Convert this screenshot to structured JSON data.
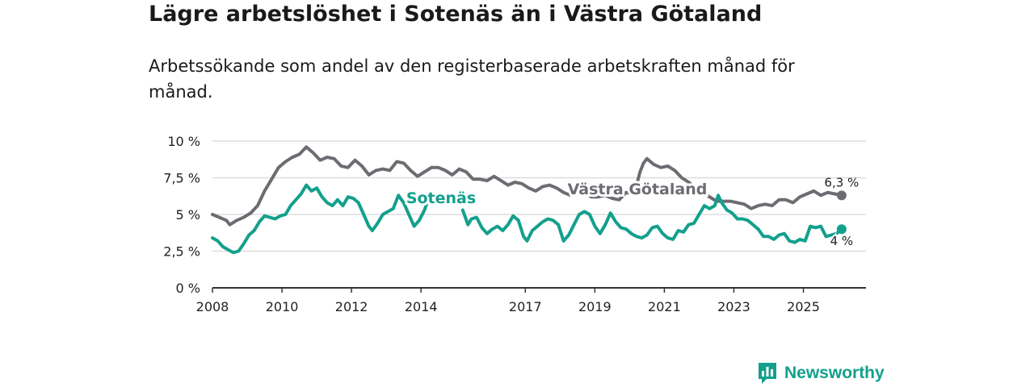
{
  "title": "Lägre arbetslöshet i Sotenäs än i Västra Götaland",
  "subtitle": "Arbetssökande som andel av den registerbaserade arbetskraften månad för månad.",
  "brand": {
    "name": "Newsworthy",
    "icon": "bar-chart-speech-icon"
  },
  "colors": {
    "sotenas": "#13a08c",
    "vastra": "#6d6c72",
    "grid": "#dddddd",
    "axis": "#333333"
  },
  "chart_data": {
    "type": "line",
    "title": "Lägre arbetslöshet i Sotenäs än i Västra Götaland",
    "xlabel": "",
    "ylabel": "",
    "xlim": [
      2008.0,
      2026.8
    ],
    "ylim": [
      0,
      10
    ],
    "y_ticks": [
      {
        "value": 0,
        "label": "0 %"
      },
      {
        "value": 2.5,
        "label": "2,5 %"
      },
      {
        "value": 5,
        "label": "5 %"
      },
      {
        "value": 7.5,
        "label": "7,5 %"
      },
      {
        "value": 10,
        "label": "10 %"
      }
    ],
    "x_ticks": [
      {
        "value": 2008,
        "label": "2008"
      },
      {
        "value": 2010,
        "label": "2010"
      },
      {
        "value": 2012,
        "label": "2012"
      },
      {
        "value": 2014,
        "label": "2014"
      },
      {
        "value": 2017,
        "label": "2017"
      },
      {
        "value": 2019,
        "label": "2019"
      },
      {
        "value": 2021,
        "label": "2021"
      },
      {
        "value": 2023,
        "label": "2023"
      },
      {
        "value": 2025,
        "label": "2025"
      }
    ],
    "grid": true,
    "series": [
      {
        "name": "Västra Götaland",
        "color": "#6d6c72",
        "end_label": "6,3 %",
        "points": [
          [
            2008.0,
            5.0
          ],
          [
            2008.2,
            4.8
          ],
          [
            2008.4,
            4.6
          ],
          [
            2008.5,
            4.3
          ],
          [
            2008.7,
            4.6
          ],
          [
            2008.9,
            4.8
          ],
          [
            2009.1,
            5.1
          ],
          [
            2009.3,
            5.6
          ],
          [
            2009.5,
            6.6
          ],
          [
            2009.7,
            7.4
          ],
          [
            2009.9,
            8.2
          ],
          [
            2010.1,
            8.6
          ],
          [
            2010.3,
            8.9
          ],
          [
            2010.5,
            9.1
          ],
          [
            2010.7,
            9.6
          ],
          [
            2010.9,
            9.2
          ],
          [
            2011.1,
            8.7
          ],
          [
            2011.3,
            8.9
          ],
          [
            2011.5,
            8.8
          ],
          [
            2011.7,
            8.3
          ],
          [
            2011.9,
            8.2
          ],
          [
            2012.1,
            8.7
          ],
          [
            2012.3,
            8.3
          ],
          [
            2012.5,
            7.7
          ],
          [
            2012.7,
            8.0
          ],
          [
            2012.9,
            8.1
          ],
          [
            2013.1,
            8.0
          ],
          [
            2013.3,
            8.6
          ],
          [
            2013.5,
            8.5
          ],
          [
            2013.7,
            8.0
          ],
          [
            2013.9,
            7.6
          ],
          [
            2014.1,
            7.9
          ],
          [
            2014.3,
            8.2
          ],
          [
            2014.5,
            8.2
          ],
          [
            2014.7,
            8.0
          ],
          [
            2014.9,
            7.7
          ],
          [
            2015.1,
            8.1
          ],
          [
            2015.3,
            7.9
          ],
          [
            2015.5,
            7.4
          ],
          [
            2015.7,
            7.4
          ],
          [
            2015.9,
            7.3
          ],
          [
            2016.1,
            7.6
          ],
          [
            2016.3,
            7.3
          ],
          [
            2016.5,
            7.0
          ],
          [
            2016.7,
            7.2
          ],
          [
            2016.9,
            7.1
          ],
          [
            2017.1,
            6.8
          ],
          [
            2017.3,
            6.6
          ],
          [
            2017.5,
            6.9
          ],
          [
            2017.7,
            7.0
          ],
          [
            2017.9,
            6.8
          ],
          [
            2018.1,
            6.5
          ],
          [
            2018.3,
            6.3
          ],
          [
            2018.5,
            6.6
          ],
          [
            2018.7,
            6.5
          ],
          [
            2018.9,
            6.2
          ],
          [
            2019.1,
            6.2
          ],
          [
            2019.3,
            6.3
          ],
          [
            2019.5,
            6.1
          ],
          [
            2019.7,
            6.0
          ],
          [
            2019.9,
            6.5
          ],
          [
            2020.1,
            6.4
          ],
          [
            2020.2,
            7.0
          ],
          [
            2020.3,
            7.9
          ],
          [
            2020.4,
            8.5
          ],
          [
            2020.5,
            8.8
          ],
          [
            2020.7,
            8.4
          ],
          [
            2020.9,
            8.2
          ],
          [
            2021.1,
            8.3
          ],
          [
            2021.3,
            8.0
          ],
          [
            2021.5,
            7.5
          ],
          [
            2021.7,
            7.2
          ],
          [
            2021.9,
            6.8
          ],
          [
            2022.1,
            6.5
          ],
          [
            2022.3,
            6.2
          ],
          [
            2022.5,
            5.9
          ],
          [
            2022.7,
            5.9
          ],
          [
            2022.9,
            5.9
          ],
          [
            2023.1,
            5.8
          ],
          [
            2023.3,
            5.7
          ],
          [
            2023.5,
            5.4
          ],
          [
            2023.7,
            5.6
          ],
          [
            2023.9,
            5.7
          ],
          [
            2024.1,
            5.6
          ],
          [
            2024.3,
            6.0
          ],
          [
            2024.5,
            6.0
          ],
          [
            2024.7,
            5.8
          ],
          [
            2024.9,
            6.2
          ],
          [
            2025.1,
            6.4
          ],
          [
            2025.3,
            6.6
          ],
          [
            2025.5,
            6.3
          ],
          [
            2025.7,
            6.5
          ],
          [
            2025.9,
            6.4
          ],
          [
            2026.1,
            6.3
          ]
        ]
      },
      {
        "name": "Sotenäs",
        "color": "#13a08c",
        "end_label": "4 %",
        "points": [
          [
            2008.0,
            3.4
          ],
          [
            2008.15,
            3.2
          ],
          [
            2008.3,
            2.8
          ],
          [
            2008.45,
            2.6
          ],
          [
            2008.6,
            2.4
          ],
          [
            2008.75,
            2.5
          ],
          [
            2008.9,
            3.0
          ],
          [
            2009.05,
            3.6
          ],
          [
            2009.2,
            3.9
          ],
          [
            2009.35,
            4.5
          ],
          [
            2009.5,
            4.9
          ],
          [
            2009.65,
            4.8
          ],
          [
            2009.8,
            4.7
          ],
          [
            2009.95,
            4.9
          ],
          [
            2010.1,
            5.0
          ],
          [
            2010.25,
            5.6
          ],
          [
            2010.4,
            6.0
          ],
          [
            2010.55,
            6.4
          ],
          [
            2010.7,
            7.0
          ],
          [
            2010.85,
            6.6
          ],
          [
            2011.0,
            6.8
          ],
          [
            2011.15,
            6.2
          ],
          [
            2011.3,
            5.8
          ],
          [
            2011.45,
            5.6
          ],
          [
            2011.6,
            6.0
          ],
          [
            2011.75,
            5.6
          ],
          [
            2011.9,
            6.2
          ],
          [
            2012.05,
            6.1
          ],
          [
            2012.2,
            5.8
          ],
          [
            2012.35,
            5.0
          ],
          [
            2012.5,
            4.2
          ],
          [
            2012.6,
            3.9
          ],
          [
            2012.75,
            4.4
          ],
          [
            2012.9,
            5.0
          ],
          [
            2013.05,
            5.2
          ],
          [
            2013.2,
            5.4
          ],
          [
            2013.35,
            6.3
          ],
          [
            2013.5,
            5.8
          ],
          [
            2013.65,
            5.0
          ],
          [
            2013.8,
            4.2
          ],
          [
            2013.95,
            4.6
          ],
          [
            2014.1,
            5.3
          ],
          [
            2014.25,
            6.3
          ]
        ],
        "points_b": [
          [
            2015.2,
            5.3
          ],
          [
            2015.35,
            4.3
          ],
          [
            2015.45,
            4.7
          ],
          [
            2015.6,
            4.8
          ],
          [
            2015.75,
            4.1
          ],
          [
            2015.9,
            3.7
          ],
          [
            2016.05,
            4.0
          ],
          [
            2016.2,
            4.2
          ],
          [
            2016.35,
            3.9
          ],
          [
            2016.5,
            4.3
          ],
          [
            2016.65,
            4.9
          ],
          [
            2016.8,
            4.6
          ],
          [
            2016.95,
            3.5
          ],
          [
            2017.05,
            3.2
          ],
          [
            2017.2,
            3.9
          ],
          [
            2017.35,
            4.2
          ],
          [
            2017.5,
            4.5
          ],
          [
            2017.65,
            4.7
          ],
          [
            2017.8,
            4.6
          ],
          [
            2017.95,
            4.3
          ],
          [
            2018.1,
            3.2
          ],
          [
            2018.25,
            3.6
          ],
          [
            2018.4,
            4.3
          ],
          [
            2018.55,
            5.0
          ],
          [
            2018.7,
            5.2
          ],
          [
            2018.85,
            5.0
          ],
          [
            2019.0,
            4.2
          ],
          [
            2019.15,
            3.7
          ],
          [
            2019.3,
            4.3
          ],
          [
            2019.45,
            5.1
          ],
          [
            2019.6,
            4.5
          ],
          [
            2019.75,
            4.1
          ],
          [
            2019.9,
            4.0
          ],
          [
            2020.05,
            3.7
          ],
          [
            2020.2,
            3.5
          ],
          [
            2020.35,
            3.4
          ],
          [
            2020.5,
            3.6
          ],
          [
            2020.65,
            4.1
          ],
          [
            2020.8,
            4.2
          ],
          [
            2020.95,
            3.7
          ],
          [
            2021.1,
            3.4
          ],
          [
            2021.25,
            3.3
          ],
          [
            2021.4,
            3.9
          ],
          [
            2021.55,
            3.8
          ],
          [
            2021.7,
            4.3
          ],
          [
            2021.85,
            4.4
          ],
          [
            2022.0,
            5.0
          ],
          [
            2022.15,
            5.6
          ],
          [
            2022.3,
            5.4
          ],
          [
            2022.45,
            5.6
          ],
          [
            2022.55,
            6.3
          ],
          [
            2022.65,
            5.8
          ],
          [
            2022.8,
            5.3
          ],
          [
            2022.95,
            5.1
          ],
          [
            2023.1,
            4.7
          ],
          [
            2023.25,
            4.7
          ],
          [
            2023.4,
            4.6
          ],
          [
            2023.55,
            4.3
          ],
          [
            2023.7,
            4.0
          ],
          [
            2023.85,
            3.5
          ],
          [
            2024.0,
            3.5
          ],
          [
            2024.15,
            3.3
          ],
          [
            2024.3,
            3.6
          ],
          [
            2024.45,
            3.7
          ],
          [
            2024.6,
            3.2
          ],
          [
            2024.75,
            3.1
          ],
          [
            2024.9,
            3.3
          ],
          [
            2025.05,
            3.2
          ],
          [
            2025.2,
            4.2
          ],
          [
            2025.35,
            4.1
          ],
          [
            2025.5,
            4.2
          ],
          [
            2025.65,
            3.5
          ],
          [
            2025.8,
            3.6
          ],
          [
            2025.95,
            3.7
          ],
          [
            2026.1,
            4.0
          ]
        ]
      }
    ],
    "annotations": [
      {
        "text": "Sotenäs",
        "series": "Sotenäs"
      },
      {
        "text": "Västra Götaland",
        "series": "Västra Götaland"
      }
    ]
  }
}
